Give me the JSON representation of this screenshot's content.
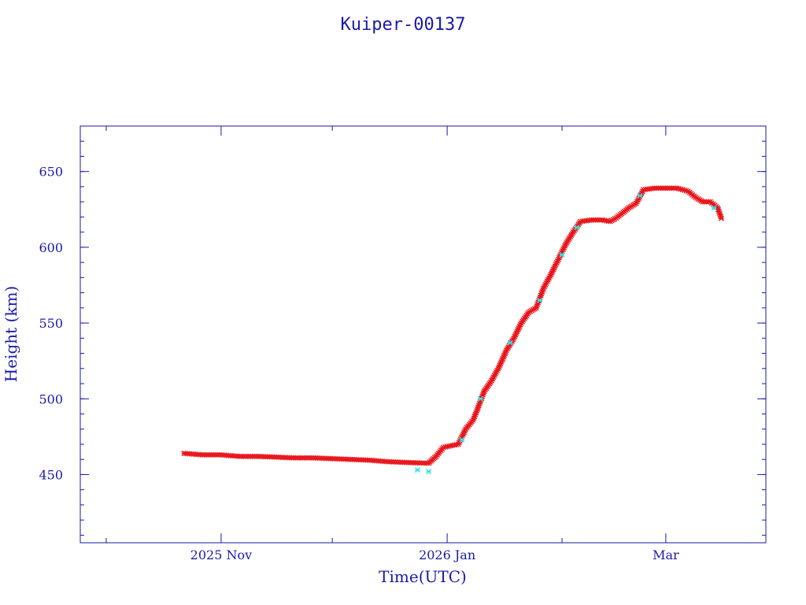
{
  "chart_data": {
    "type": "scatter",
    "title": "Kuiper-00137",
    "xlabel": "Time(UTC)",
    "ylabel": "Height (km)",
    "x_unit": "date",
    "xlim": [
      "2025-09-24",
      "2026-03-28"
    ],
    "ylim": [
      405,
      680
    ],
    "x_ticks": [
      {
        "date": "2025-11-01",
        "label": "2025 Nov"
      },
      {
        "date": "2026-01-01",
        "label": "2026 Jan"
      },
      {
        "date": "2026-03-01",
        "label": "Mar"
      }
    ],
    "x_minor_ticks": [
      "2025-10-01",
      "2025-12-01",
      "2026-02-01"
    ],
    "y_ticks": [
      450,
      500,
      550,
      600,
      650
    ],
    "y_minor_step": 10,
    "grid": false,
    "colors": {
      "axes": "#1a1aa6",
      "primary": "#e8161c",
      "secondary": "#2ae8f0"
    },
    "series": [
      {
        "color": "#e8161c",
        "points": [
          [
            "2025-10-22",
            464
          ],
          [
            "2025-10-27",
            463
          ],
          [
            "2025-11-01",
            463
          ],
          [
            "2025-11-06",
            462
          ],
          [
            "2025-11-11",
            462
          ],
          [
            "2025-11-16",
            461.5
          ],
          [
            "2025-11-21",
            461
          ],
          [
            "2025-11-26",
            461
          ],
          [
            "2025-12-01",
            460.5
          ],
          [
            "2025-12-06",
            460
          ],
          [
            "2025-12-11",
            459.5
          ],
          [
            "2025-12-16",
            458.5
          ],
          [
            "2025-12-21",
            458
          ],
          [
            "2025-12-27",
            457.5
          ],
          [
            "2025-12-29",
            462
          ],
          [
            "2025-12-31",
            468
          ],
          [
            "2026-01-02",
            469
          ],
          [
            "2026-01-04",
            470
          ],
          [
            "2026-01-06",
            480
          ],
          [
            "2026-01-08",
            486
          ],
          [
            "2026-01-09",
            492
          ],
          [
            "2026-01-11",
            505
          ],
          [
            "2026-01-13",
            512
          ],
          [
            "2026-01-15",
            521
          ],
          [
            "2026-01-17",
            532
          ],
          [
            "2026-01-19",
            540
          ],
          [
            "2026-01-21",
            550
          ],
          [
            "2026-01-23",
            557
          ],
          [
            "2026-01-25",
            560
          ],
          [
            "2026-01-27",
            573
          ],
          [
            "2026-01-29",
            582
          ],
          [
            "2026-01-31",
            592
          ],
          [
            "2026-02-02",
            602
          ],
          [
            "2026-02-04",
            610
          ],
          [
            "2026-02-06",
            617
          ],
          [
            "2026-02-09",
            618
          ],
          [
            "2026-02-12",
            618
          ],
          [
            "2026-02-14",
            617
          ],
          [
            "2026-02-16",
            620
          ],
          [
            "2026-02-19",
            626
          ],
          [
            "2026-02-21",
            629
          ],
          [
            "2026-02-23",
            638
          ],
          [
            "2026-02-26",
            639
          ],
          [
            "2026-03-01",
            639
          ],
          [
            "2026-03-04",
            639
          ],
          [
            "2026-03-07",
            637
          ],
          [
            "2026-03-09",
            633
          ],
          [
            "2026-03-11",
            630
          ],
          [
            "2026-03-13",
            630
          ],
          [
            "2026-03-15",
            626
          ],
          [
            "2026-03-16",
            619
          ]
        ]
      },
      {
        "color": "#2ae8f0",
        "points": [
          [
            "2025-12-24",
            453
          ],
          [
            "2025-12-27",
            452
          ],
          [
            "2026-01-05",
            473
          ],
          [
            "2026-01-10",
            500
          ],
          [
            "2026-01-18",
            537
          ],
          [
            "2026-01-26",
            565
          ],
          [
            "2026-02-01",
            595
          ],
          [
            "2026-02-05",
            613
          ],
          [
            "2026-02-22",
            634
          ],
          [
            "2026-03-14",
            626
          ]
        ]
      }
    ]
  }
}
